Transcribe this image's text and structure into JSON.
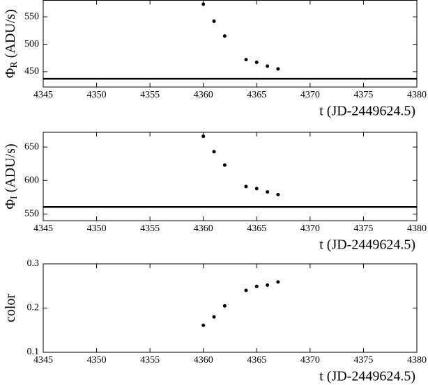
{
  "chart_data": [
    {
      "type": "scatter",
      "ylabel": "Φ",
      "ylabel_subscript": "R",
      "ylabel_unit": "(ADU/s)",
      "xlabel": "t (JD-2449624.5)",
      "x": [
        4360,
        4361,
        4362,
        4364,
        4365,
        4366,
        4367
      ],
      "values": [
        573,
        542,
        515,
        472,
        467,
        460,
        455
      ],
      "color": "#000000",
      "hline": 437,
      "xlim": [
        4345,
        4380
      ],
      "xticks": [
        4345,
        4350,
        4355,
        4360,
        4365,
        4370,
        4375,
        4380
      ],
      "ylim": [
        422,
        580
      ],
      "yticks": [
        450,
        500,
        550
      ]
    },
    {
      "type": "scatter",
      "ylabel": "Φ",
      "ylabel_subscript": "I",
      "ylabel_unit": "(ADU/s)",
      "xlabel": "t (JD-2449624.5)",
      "x": [
        4360,
        4361,
        4362,
        4364,
        4365,
        4366,
        4367
      ],
      "values": [
        666,
        643,
        623,
        591,
        588,
        583,
        579
      ],
      "color": "#000000",
      "hline": 560.5,
      "xlim": [
        4345,
        4380
      ],
      "xticks": [
        4345,
        4350,
        4355,
        4360,
        4365,
        4370,
        4375,
        4380
      ],
      "ylim": [
        540,
        672
      ],
      "yticks": [
        550,
        600,
        650
      ]
    },
    {
      "type": "scatter",
      "ylabel": "color",
      "xlabel": "t (JD-2449624.5)",
      "x": [
        4360,
        4361,
        4362,
        4364,
        4365,
        4366,
        4367
      ],
      "values": [
        0.161,
        0.18,
        0.205,
        0.24,
        0.249,
        0.252,
        0.259
      ],
      "color": "#000000",
      "xlim": [
        4345,
        4380
      ],
      "xticks": [
        4345,
        4350,
        4355,
        4360,
        4365,
        4370,
        4375,
        4380
      ],
      "ylim": [
        0.1,
        0.3
      ],
      "yticks": [
        0.1,
        0.2,
        0.3
      ]
    }
  ]
}
